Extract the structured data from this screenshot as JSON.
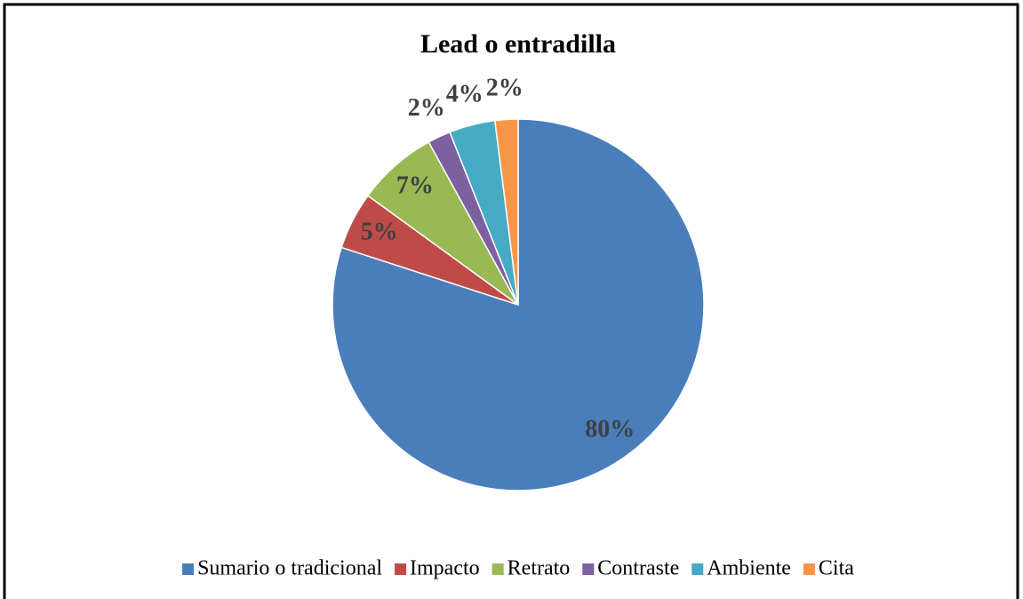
{
  "chart_data": {
    "type": "pie",
    "title": "Lead o entradilla",
    "categories": [
      "Sumario o tradicional",
      "Impacto",
      "Retrato",
      "Contraste",
      "Ambiente",
      "Cita"
    ],
    "values": [
      80,
      5,
      7,
      2,
      4,
      2
    ],
    "value_labels": [
      "80%",
      "5%",
      "7%",
      "2%",
      "4%",
      "2%"
    ],
    "colors": [
      "#4a7ebb",
      "#be4b48",
      "#98b954",
      "#7d60a0",
      "#46aac5",
      "#f79646"
    ],
    "legend": "bottom"
  }
}
